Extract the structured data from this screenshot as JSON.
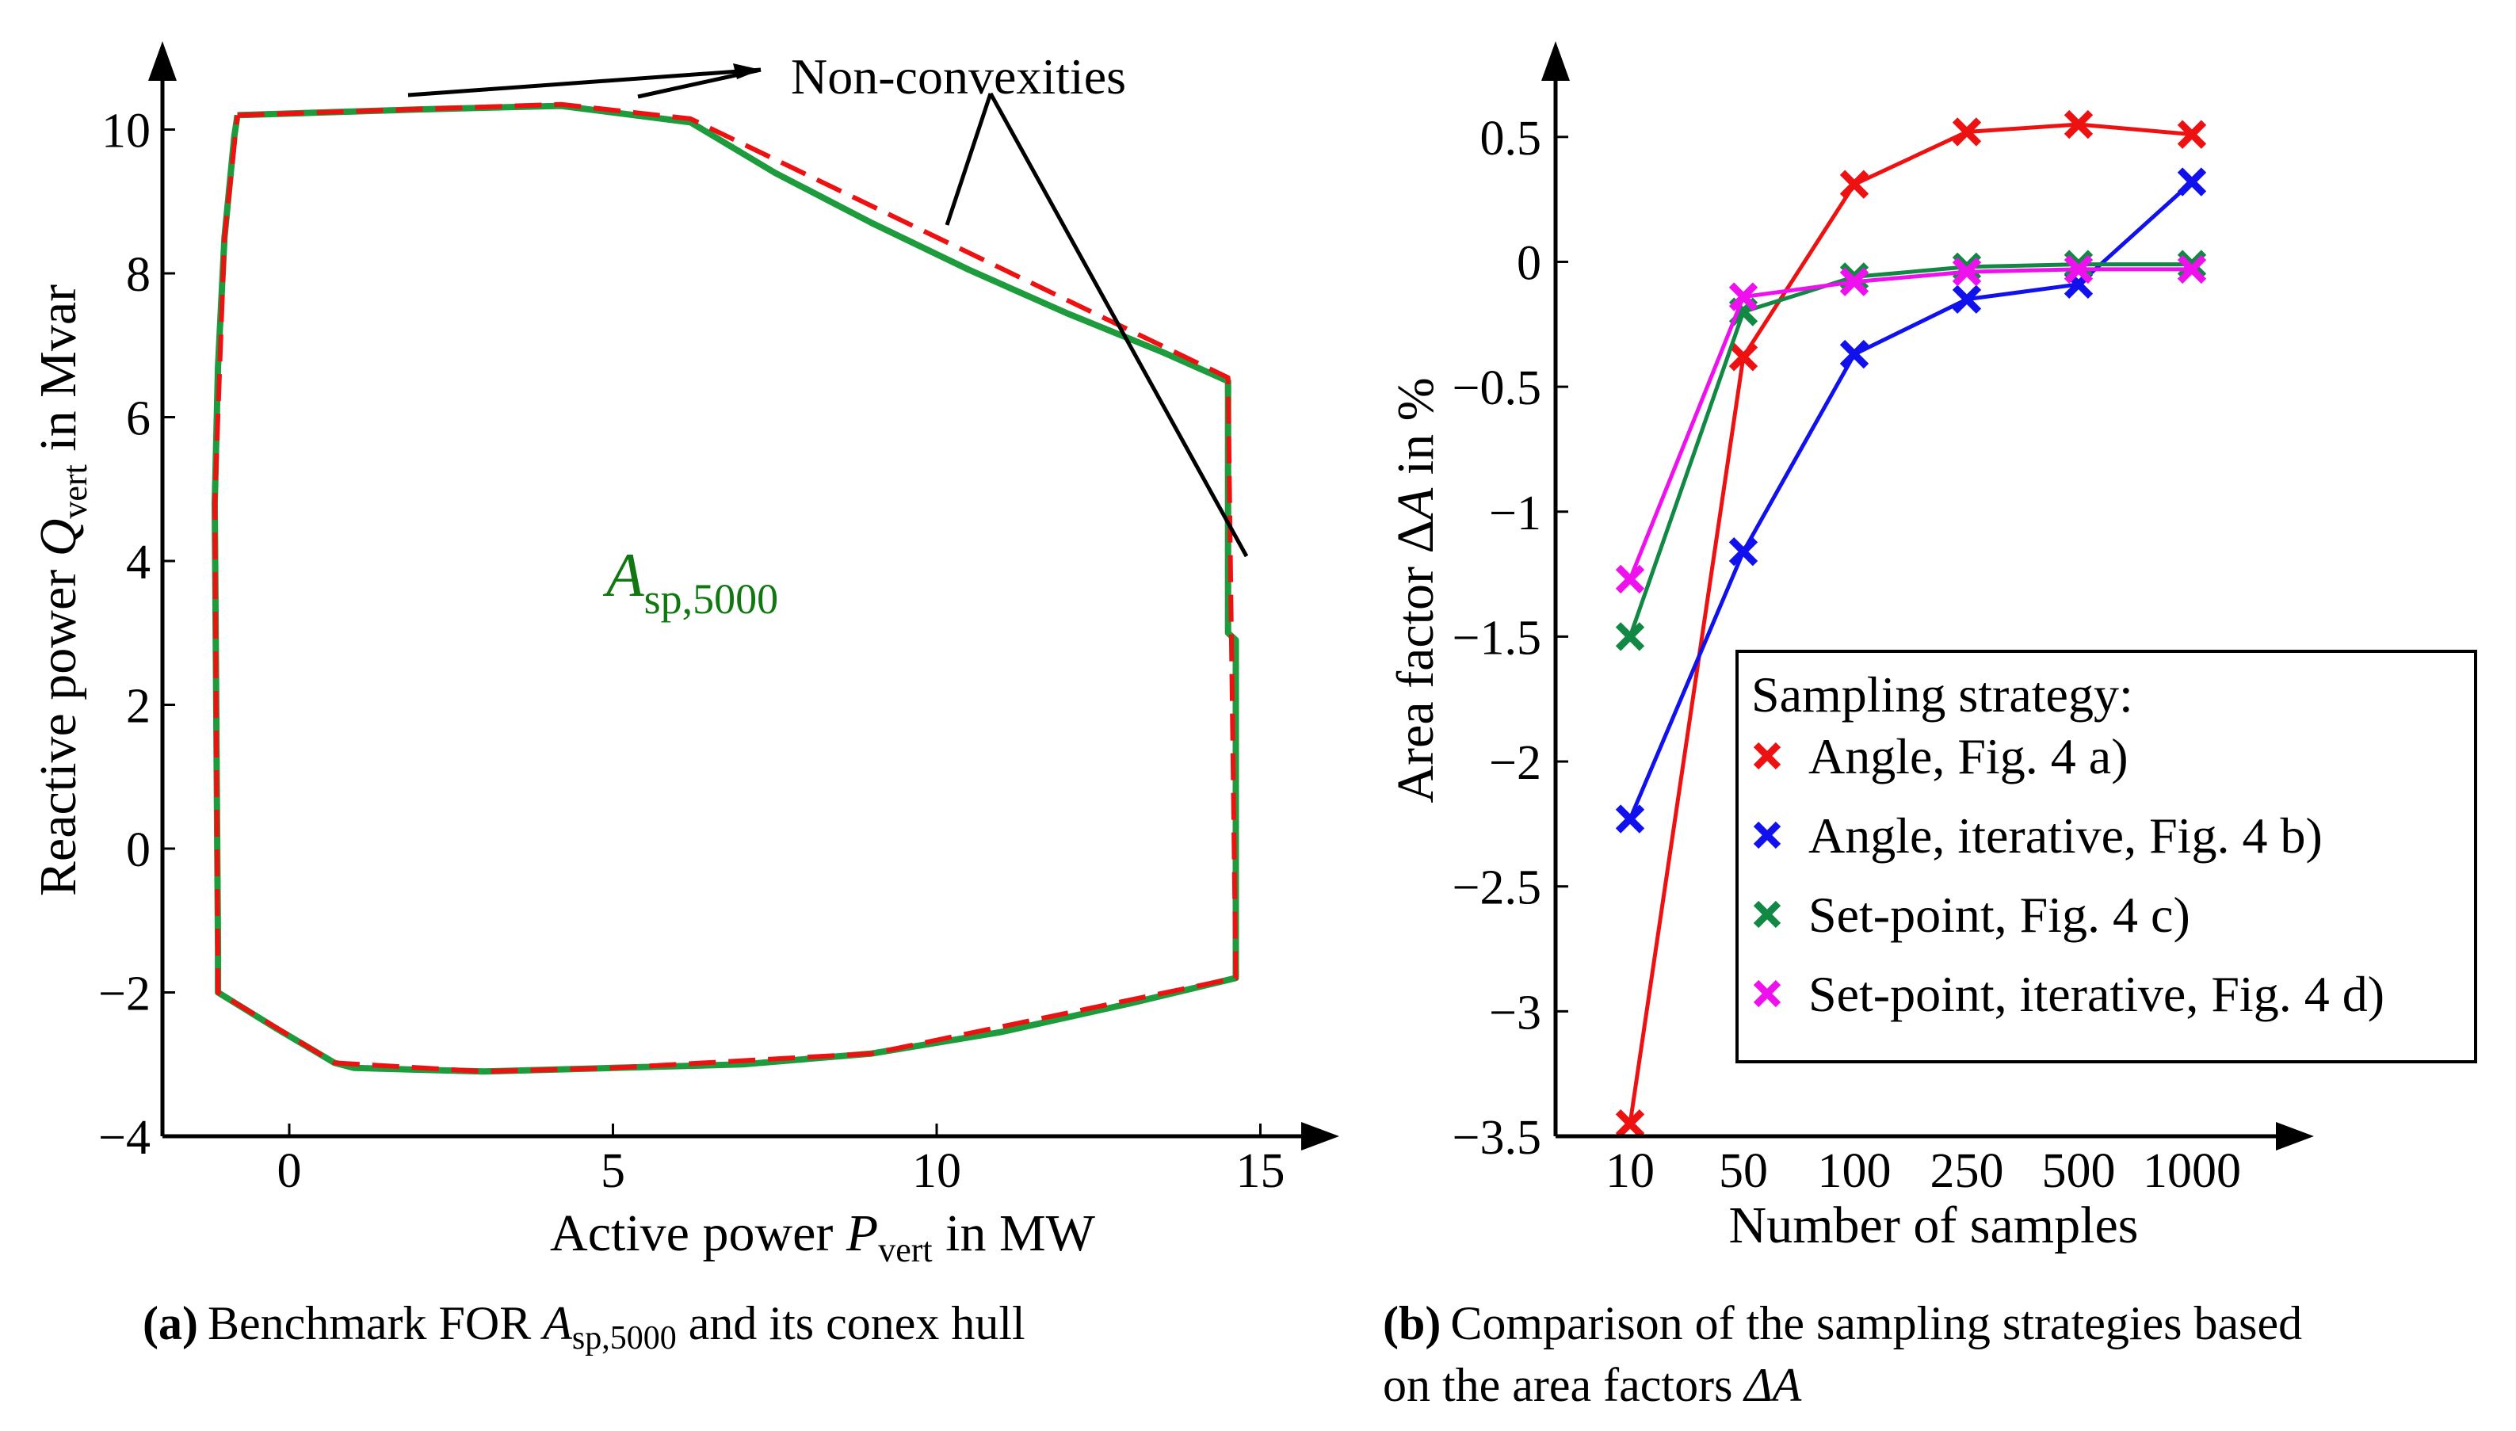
{
  "chart_data": [
    {
      "type": "line",
      "panel": "a",
      "caption": {
        "label": "(a)",
        "text_before": "Benchmark FOR ",
        "symbol": "A",
        "subscript": "sp,5000",
        "text_after": " and its conex hull"
      },
      "xlabel": {
        "before": "Active power ",
        "symbol": "P",
        "subscript": "vert",
        "after": " in MW"
      },
      "ylabel": {
        "before": "Reactive power ",
        "symbol": "Q",
        "subscript": "vert",
        "after": " in Mvar"
      },
      "xlim": [
        -1.9,
        15.5
      ],
      "ylim": [
        -4,
        10.8
      ],
      "xticks": [
        0,
        5,
        10,
        15
      ],
      "yticks": [
        -4,
        -2,
        0,
        2,
        4,
        6,
        8,
        10
      ],
      "xtick_labels": [
        "0",
        "5",
        "10",
        "15"
      ],
      "ytick_labels": [
        "−4",
        "−2",
        "0",
        "2",
        "4",
        "6",
        "8",
        "10"
      ],
      "region_label": {
        "symbol": "A",
        "subscript": "sp,5000",
        "color": "#117711"
      },
      "annotation": {
        "text": "Non-convexities"
      },
      "series": [
        {
          "name": "Benchmark FOR A_sp,5000",
          "color": "#1e9b3c",
          "style": "solid",
          "points": [
            [
              -0.8,
              10.2
            ],
            [
              2.0,
              10.28
            ],
            [
              4.2,
              10.33
            ],
            [
              6.2,
              10.1
            ],
            [
              7.5,
              9.4
            ],
            [
              9.0,
              8.7
            ],
            [
              10.5,
              8.05
            ],
            [
              12.0,
              7.45
            ],
            [
              13.5,
              6.9
            ],
            [
              14.5,
              6.5
            ],
            [
              14.5,
              3.0
            ],
            [
              14.62,
              2.9
            ],
            [
              14.62,
              -1.8
            ],
            [
              13.0,
              -2.15
            ],
            [
              11.0,
              -2.55
            ],
            [
              9.0,
              -2.85
            ],
            [
              7.0,
              -3.0
            ],
            [
              5.0,
              -3.05
            ],
            [
              3.0,
              -3.1
            ],
            [
              1.0,
              -3.05
            ],
            [
              0.7,
              -2.98
            ],
            [
              -0.2,
              -2.5
            ],
            [
              -1.1,
              -2.0
            ],
            [
              -1.1,
              -1.4
            ],
            [
              -1.15,
              4.8
            ],
            [
              -1.1,
              6.7
            ],
            [
              -1.0,
              8.5
            ],
            [
              -0.85,
              9.9
            ],
            [
              -0.8,
              10.2
            ]
          ]
        },
        {
          "name": "Convex hull",
          "color": "#ee1111",
          "style": "dashed",
          "points": [
            [
              -0.8,
              10.2
            ],
            [
              4.2,
              10.35
            ],
            [
              6.2,
              10.15
            ],
            [
              14.5,
              6.55
            ],
            [
              14.62,
              -1.8
            ],
            [
              9.0,
              -2.85
            ],
            [
              5.0,
              -3.05
            ],
            [
              3.0,
              -3.1
            ],
            [
              0.7,
              -2.98
            ],
            [
              -1.1,
              -2.0
            ],
            [
              -1.15,
              4.8
            ],
            [
              -1.0,
              8.5
            ],
            [
              -0.8,
              10.2
            ]
          ]
        }
      ]
    },
    {
      "type": "line",
      "panel": "b",
      "caption": {
        "label": "(b)",
        "line1": "Comparison of the sampling strategies based",
        "line2_before": "on the area factors ",
        "line2_symbol": "ΔA"
      },
      "xlabel": "Number of samples",
      "ylabel": {
        "before": "Area factor Δ",
        "symbol": "A",
        "after": " in %"
      },
      "categories": [
        "10",
        "50",
        "100",
        "250",
        "500",
        "1000"
      ],
      "ylim": [
        -3.5,
        0.75
      ],
      "yticks": [
        -3.5,
        -3,
        -2.5,
        -2,
        -1.5,
        -1,
        -0.5,
        0,
        0.5
      ],
      "ytick_labels": [
        "−3.5",
        "−3",
        "−2.5",
        "−2",
        "−1.5",
        "−1",
        "−0.5",
        "0",
        "0.5"
      ],
      "legend": {
        "title": "Sampling strategy:",
        "position": "lower-right"
      },
      "series": [
        {
          "name": "Angle, Fig. 4 a)",
          "color": "#ee1111",
          "values": [
            -3.45,
            -0.38,
            0.31,
            0.52,
            0.55,
            0.51
          ]
        },
        {
          "name": "Angle, iterative, Fig. 4 b)",
          "color": "#1111ee",
          "values": [
            -2.23,
            -1.16,
            -0.37,
            -0.15,
            -0.09,
            0.32
          ]
        },
        {
          "name": "Set-point, Fig. 4 c)",
          "color": "#118844",
          "values": [
            -1.5,
            -0.2,
            -0.06,
            -0.02,
            -0.01,
            -0.01
          ]
        },
        {
          "name": "Set-point, iterative, Fig. 4 d)",
          "color": "#ee11ee",
          "values": [
            -1.27,
            -0.14,
            -0.08,
            -0.04,
            -0.03,
            -0.03
          ]
        }
      ]
    }
  ]
}
